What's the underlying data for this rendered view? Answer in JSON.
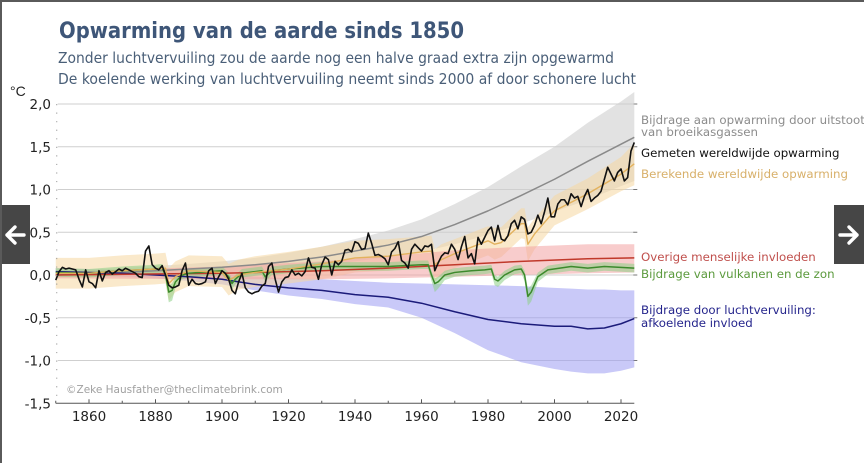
{
  "nav": {
    "previous_icon": "arrow-left",
    "next_icon": "arrow-right"
  },
  "chart_data": {
    "type": "line",
    "title": "Opwarming van de aarde sinds 1850",
    "subtitle": [
      "Zonder luchtvervuiling zou de aarde nog een halve graad extra zijn opgewarmd",
      "De koelende werking van luchtvervuiling neemt sinds 2000 af door schonere lucht"
    ],
    "xlabel": "",
    "ylabel": "°C",
    "xlim": [
      1850,
      2024
    ],
    "ylim": [
      -1.5,
      2.0
    ],
    "grid": true,
    "yticks": [
      2.0,
      1.5,
      1.0,
      0.5,
      0.0,
      -0.5,
      -1.0,
      -1.5
    ],
    "ytick_labels": [
      "2,0",
      "1,5",
      "1,0",
      "0,5",
      "0,0",
      "-0,5",
      "-1,0",
      "-1,5"
    ],
    "xticks": [
      1860,
      1880,
      1900,
      1920,
      1940,
      1960,
      1980,
      2000,
      2020
    ],
    "xtick_labels": [
      "1860",
      "1880",
      "1900",
      "1920",
      "1940",
      "1960",
      "1980",
      "2000",
      "2020"
    ],
    "credit": "©Zeke Hausfather@theclimatebrink.com",
    "legend_placement": "right",
    "legend": [
      {
        "key": "ghg",
        "lines": [
          "Bijdrage aan opwarming door uitstoot",
          "van broeikasgassen"
        ],
        "color": "#8c8c8c"
      },
      {
        "key": "measured",
        "lines": [
          "Gemeten wereldwijde opwarming"
        ],
        "color": "#111111"
      },
      {
        "key": "calculated",
        "lines": [
          "Berekende wereldwijde opwarming"
        ],
        "color": "#d8b06a"
      },
      {
        "key": "other",
        "lines": [
          "Overige menselijke invloeden"
        ],
        "color": "#c0504d"
      },
      {
        "key": "natural",
        "lines": [
          "Bijdrage van vulkanen en de zon"
        ],
        "color": "#5b9a3d"
      },
      {
        "key": "aerosols",
        "lines": [
          "Bijdrage door luchtvervuiling:",
          "afkoelende invloed"
        ],
        "color": "#25258c"
      }
    ],
    "series": [
      {
        "key": "ghg",
        "name": "Bijdrage aan opwarming door uitstoot van broeikasgassen",
        "color": "#8a8a8a",
        "band_color": "#cfcfcf",
        "x": [
          1850,
          1870,
          1890,
          1900,
          1910,
          1920,
          1930,
          1940,
          1950,
          1960,
          1970,
          1980,
          1990,
          2000,
          2010,
          2020,
          2024
        ],
        "y": [
          0.0,
          0.03,
          0.07,
          0.09,
          0.12,
          0.16,
          0.21,
          0.28,
          0.35,
          0.45,
          0.59,
          0.75,
          0.93,
          1.12,
          1.33,
          1.53,
          1.61
        ],
        "upper": [
          0.04,
          0.08,
          0.13,
          0.16,
          0.2,
          0.26,
          0.33,
          0.42,
          0.52,
          0.65,
          0.83,
          1.03,
          1.27,
          1.5,
          1.78,
          2.03,
          2.14
        ],
        "lower": [
          -0.03,
          -0.01,
          0.02,
          0.03,
          0.05,
          0.08,
          0.11,
          0.16,
          0.21,
          0.27,
          0.36,
          0.47,
          0.6,
          0.74,
          0.88,
          1.04,
          1.1
        ]
      },
      {
        "key": "aerosols",
        "name": "Bijdrage door luchtvervuiling: afkoelende invloed",
        "color": "#1b1b7a",
        "band_color": "#9d9df2",
        "x": [
          1850,
          1860,
          1870,
          1880,
          1890,
          1900,
          1910,
          1920,
          1930,
          1940,
          1950,
          1960,
          1970,
          1980,
          1990,
          2000,
          2005,
          2010,
          2015,
          2020,
          2024
        ],
        "y": [
          0.04,
          0.03,
          0.02,
          0.0,
          -0.02,
          -0.05,
          -0.11,
          -0.15,
          -0.18,
          -0.23,
          -0.26,
          -0.33,
          -0.43,
          -0.52,
          -0.57,
          -0.6,
          -0.6,
          -0.63,
          -0.62,
          -0.57,
          -0.51
        ],
        "upper": [
          0.08,
          0.07,
          0.06,
          0.05,
          0.03,
          0.01,
          -0.02,
          -0.04,
          -0.05,
          -0.07,
          -0.09,
          -0.1,
          -0.11,
          -0.12,
          -0.13,
          -0.15,
          -0.16,
          -0.17,
          -0.17,
          -0.18,
          -0.18
        ],
        "lower": [
          0.0,
          -0.01,
          -0.02,
          -0.04,
          -0.07,
          -0.11,
          -0.18,
          -0.24,
          -0.28,
          -0.34,
          -0.38,
          -0.5,
          -0.68,
          -0.88,
          -1.02,
          -1.1,
          -1.13,
          -1.15,
          -1.15,
          -1.12,
          -1.08
        ]
      },
      {
        "key": "calculated",
        "name": "Berekende wereldwijde opwarming",
        "color": "#e3b25e",
        "band_color": "#f6d7a0",
        "x": [
          1850,
          1860,
          1870,
          1880,
          1883,
          1884,
          1886,
          1890,
          1900,
          1902,
          1905,
          1910,
          1920,
          1930,
          1940,
          1950,
          1960,
          1963,
          1964,
          1966,
          1970,
          1980,
          1982,
          1984,
          1990,
          1991,
          1992,
          1994,
          2000,
          2010,
          2020,
          2024
        ],
        "y": [
          0.02,
          0.02,
          0.05,
          0.07,
          0.08,
          -0.1,
          -0.02,
          0.05,
          0.03,
          -0.06,
          0.0,
          0.03,
          0.07,
          0.13,
          0.2,
          0.22,
          0.27,
          0.28,
          0.12,
          0.18,
          0.25,
          0.4,
          0.36,
          0.38,
          0.6,
          0.6,
          0.36,
          0.48,
          0.75,
          0.95,
          1.18,
          1.3
        ],
        "upper": [
          0.2,
          0.2,
          0.23,
          0.25,
          0.26,
          0.08,
          0.16,
          0.23,
          0.22,
          0.13,
          0.18,
          0.22,
          0.27,
          0.33,
          0.4,
          0.42,
          0.45,
          0.46,
          0.3,
          0.36,
          0.42,
          0.57,
          0.55,
          0.56,
          0.78,
          0.78,
          0.56,
          0.66,
          0.93,
          1.13,
          1.38,
          1.54
        ],
        "lower": [
          -0.16,
          -0.16,
          -0.13,
          -0.11,
          -0.1,
          -0.3,
          -0.2,
          -0.13,
          -0.14,
          -0.24,
          -0.17,
          -0.14,
          -0.1,
          -0.05,
          0.03,
          0.05,
          0.1,
          0.11,
          -0.08,
          0.01,
          0.08,
          0.23,
          0.18,
          0.21,
          0.43,
          0.42,
          0.16,
          0.3,
          0.58,
          0.77,
          0.98,
          1.05
        ]
      },
      {
        "key": "other",
        "name": "Overige menselijke invloeden",
        "color": "#c0392b",
        "band_color": "#f3a3a3",
        "x": [
          1850,
          1900,
          1930,
          1950,
          1970,
          1990,
          2010,
          2024
        ],
        "y": [
          0.0,
          0.02,
          0.05,
          0.08,
          0.12,
          0.16,
          0.19,
          0.2
        ],
        "upper": [
          0.04,
          0.1,
          0.16,
          0.22,
          0.29,
          0.33,
          0.36,
          0.36
        ],
        "lower": [
          -0.04,
          -0.05,
          -0.05,
          -0.04,
          -0.02,
          0.0,
          0.02,
          0.03
        ]
      },
      {
        "key": "natural",
        "name": "Bijdrage van vulkanen en de zon",
        "color": "#3c8a2c",
        "band_color": "#8ccf86",
        "x": [
          1850,
          1860,
          1870,
          1880,
          1882,
          1883,
          1884,
          1885,
          1886,
          1888,
          1890,
          1900,
          1902,
          1903,
          1904,
          1906,
          1912,
          1913,
          1915,
          1920,
          1930,
          1940,
          1950,
          1960,
          1962,
          1963,
          1964,
          1965,
          1967,
          1970,
          1975,
          1979,
          1981,
          1982,
          1983,
          1985,
          1988,
          1990,
          1991,
          1992,
          1993,
          1995,
          1998,
          2005,
          2010,
          2015,
          2024
        ],
        "y": [
          0.03,
          0.02,
          0.05,
          0.07,
          0.08,
          0.0,
          -0.2,
          -0.18,
          -0.08,
          0.0,
          0.02,
          0.05,
          -0.02,
          -0.1,
          -0.05,
          0.02,
          0.05,
          -0.02,
          0.05,
          0.07,
          0.1,
          0.1,
          0.1,
          0.12,
          0.12,
          0.0,
          -0.1,
          -0.08,
          0.0,
          0.03,
          0.05,
          0.06,
          0.07,
          -0.05,
          -0.07,
          0.0,
          0.06,
          0.07,
          0.0,
          -0.25,
          -0.2,
          -0.02,
          0.06,
          0.1,
          0.08,
          0.1,
          0.08
        ],
        "upper": [
          0.08,
          0.07,
          0.1,
          0.12,
          0.13,
          0.05,
          -0.12,
          -0.1,
          -0.02,
          0.05,
          0.07,
          0.1,
          0.03,
          -0.04,
          0.0,
          0.07,
          0.1,
          0.03,
          0.1,
          0.12,
          0.15,
          0.15,
          0.15,
          0.17,
          0.17,
          0.05,
          -0.04,
          -0.02,
          0.05,
          0.08,
          0.1,
          0.11,
          0.12,
          0.0,
          -0.02,
          0.05,
          0.11,
          0.12,
          0.05,
          -0.16,
          -0.12,
          0.03,
          0.11,
          0.15,
          0.13,
          0.15,
          0.13
        ],
        "lower": [
          -0.02,
          -0.03,
          0.0,
          0.02,
          0.03,
          -0.06,
          -0.32,
          -0.3,
          -0.15,
          -0.05,
          -0.03,
          0.0,
          -0.08,
          -0.17,
          -0.11,
          -0.03,
          0.0,
          -0.08,
          0.0,
          0.02,
          0.05,
          0.05,
          0.05,
          0.07,
          0.07,
          -0.07,
          -0.2,
          -0.16,
          -0.06,
          -0.02,
          0.0,
          0.01,
          0.02,
          -0.12,
          -0.14,
          -0.06,
          0.01,
          0.02,
          -0.07,
          -0.36,
          -0.31,
          -0.08,
          0.01,
          0.05,
          0.03,
          0.05,
          0.03
        ]
      },
      {
        "key": "measured",
        "name": "Gemeten wereldwijde opwarming",
        "color": "#111111",
        "start_year": 1850,
        "step": 1,
        "y": [
          -0.06,
          0.04,
          0.09,
          0.07,
          0.08,
          0.07,
          0.06,
          -0.05,
          -0.14,
          0.06,
          -0.08,
          -0.1,
          -0.15,
          0.05,
          -0.07,
          0.03,
          0.05,
          0.01,
          0.04,
          0.07,
          0.05,
          0.08,
          0.06,
          0.04,
          0.02,
          -0.02,
          -0.03,
          0.28,
          0.34,
          0.12,
          0.08,
          0.06,
          0.11,
          0.0,
          -0.12,
          -0.15,
          -0.14,
          -0.12,
          0.05,
          0.14,
          -0.12,
          -0.05,
          -0.1,
          -0.11,
          -0.1,
          -0.08,
          0.05,
          0.08,
          -0.1,
          -0.02,
          0.05,
          0.02,
          -0.05,
          -0.18,
          -0.22,
          -0.08,
          0.02,
          -0.15,
          -0.2,
          -0.22,
          -0.2,
          -0.19,
          -0.13,
          -0.1,
          0.1,
          0.14,
          -0.05,
          -0.2,
          -0.08,
          -0.03,
          -0.02,
          0.06,
          0.0,
          0.02,
          -0.01,
          0.04,
          0.2,
          0.09,
          0.08,
          -0.05,
          0.12,
          0.21,
          0.18,
          0.0,
          0.16,
          0.12,
          0.16,
          0.29,
          0.3,
          0.27,
          0.39,
          0.37,
          0.3,
          0.31,
          0.49,
          0.37,
          0.23,
          0.24,
          0.22,
          0.19,
          0.12,
          0.27,
          0.31,
          0.39,
          0.17,
          0.14,
          0.08,
          0.3,
          0.36,
          0.32,
          0.28,
          0.34,
          0.33,
          0.36,
          0.05,
          0.14,
          0.22,
          0.26,
          0.25,
          0.36,
          0.3,
          0.18,
          0.33,
          0.45,
          0.2,
          0.25,
          0.13,
          0.44,
          0.36,
          0.44,
          0.52,
          0.56,
          0.4,
          0.58,
          0.42,
          0.4,
          0.46,
          0.6,
          0.64,
          0.54,
          0.68,
          0.65,
          0.48,
          0.5,
          0.58,
          0.7,
          0.6,
          0.74,
          0.9,
          0.68,
          0.68,
          0.83,
          0.88,
          0.88,
          0.82,
          0.95,
          0.9,
          0.92,
          0.8,
          0.92,
          1.0,
          0.86,
          0.9,
          0.93,
          0.98,
          1.12,
          1.26,
          1.18,
          1.1,
          1.2,
          1.24,
          1.1,
          1.14,
          1.45,
          1.55
        ]
      }
    ]
  }
}
